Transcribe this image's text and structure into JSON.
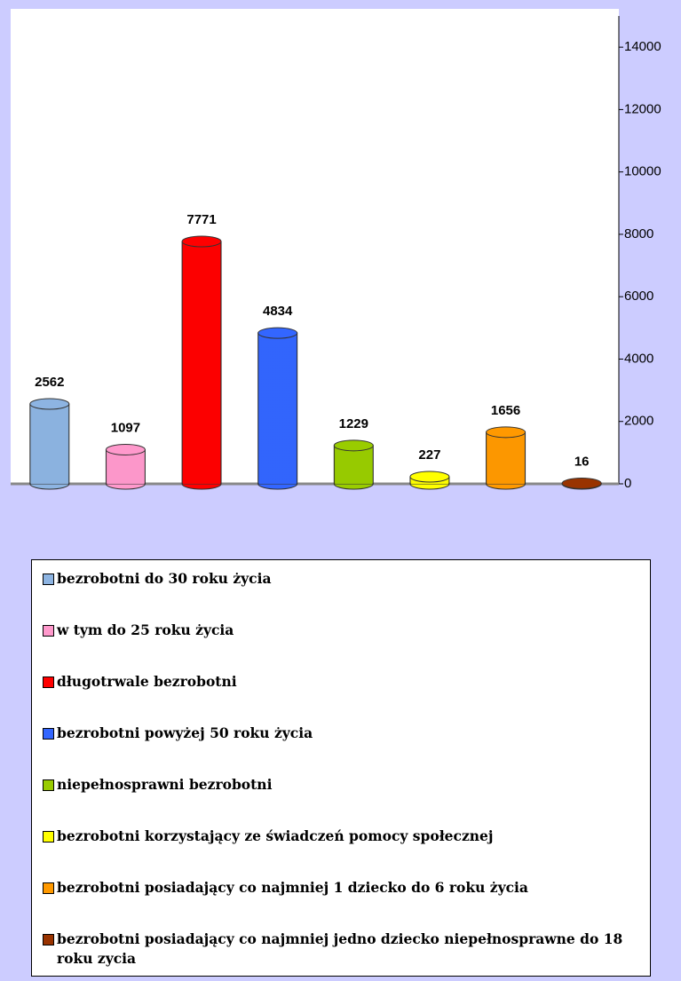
{
  "chart_data": {
    "type": "bar",
    "series": [
      {
        "name": "bezrobotni do 30 roku życia",
        "color": "#8db4e2",
        "values": [
          2562
        ]
      },
      {
        "name": "w tym do 25 roku życia",
        "color": "#ff99cc",
        "values": [
          1097
        ]
      },
      {
        "name": "długotrwale bezrobotni",
        "color": "#ff0000",
        "values": [
          7771
        ]
      },
      {
        "name": "bezrobotni powyżej 50 roku życia",
        "color": "#3366ff",
        "values": [
          4834
        ]
      },
      {
        "name": "niepełnosprawni bezrobotni",
        "color": "#99cc00",
        "values": [
          1229
        ]
      },
      {
        "name": "bezrobotni korzystający ze świadczeń pomocy społecznej",
        "color": "#ffff00",
        "values": [
          227
        ]
      },
      {
        "name": "bezrobotni posiadający co najmniej 1 dziecko do 6 roku życia",
        "color": "#ff9900",
        "values": [
          1656
        ]
      },
      {
        "name": "bezrobotni posiadający co najmniej jedno dziecko niepełnosprawne do 18 roku zycia",
        "color": "#993300",
        "values": [
          16
        ]
      }
    ],
    "ylim": [
      0,
      15000
    ],
    "yticks": [
      0,
      2000,
      4000,
      6000,
      8000,
      10000,
      12000,
      14000
    ]
  }
}
